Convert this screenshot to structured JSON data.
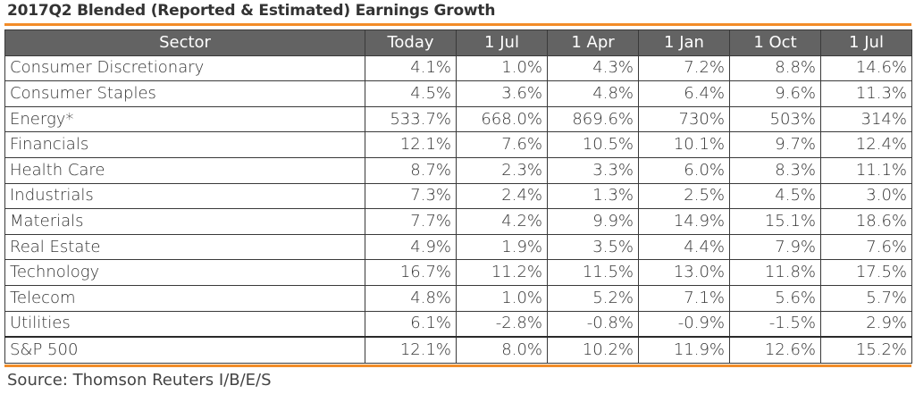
{
  "title": "2017Q2 Blended (Reported & Estimated) Earnings Growth",
  "source": "Source: Thomson Reuters I/B/E/S",
  "colors": {
    "accent": "#f28c28",
    "header_bg": "#636363",
    "text": "#333333"
  },
  "chart_data": {
    "type": "table",
    "title": "2017Q2 Blended (Reported & Estimated) Earnings Growth",
    "columns": [
      "Sector",
      "Today",
      "1 Jul",
      "1 Apr",
      "1 Jan",
      "1 Oct",
      "1 Jul"
    ],
    "rows": [
      [
        "Consumer Discretionary",
        "4.1%",
        "1.0%",
        "4.3%",
        "7.2%",
        "8.8%",
        "14.6%"
      ],
      [
        "Consumer Staples",
        "4.5%",
        "3.6%",
        "4.8%",
        "6.4%",
        "9.6%",
        "11.3%"
      ],
      [
        "Energy*",
        "533.7%",
        "668.0%",
        "869.6%",
        "730%",
        "503%",
        "314%"
      ],
      [
        "Financials",
        "12.1%",
        "7.6%",
        "10.5%",
        "10.1%",
        "9.7%",
        "12.4%"
      ],
      [
        "Health Care",
        "8.7%",
        "2.3%",
        "3.3%",
        "6.0%",
        "8.3%",
        "11.1%"
      ],
      [
        "Industrials",
        "7.3%",
        "2.4%",
        "1.3%",
        "2.5%",
        "4.5%",
        "3.0%"
      ],
      [
        "Materials",
        "7.7%",
        "4.2%",
        "9.9%",
        "14.9%",
        "15.1%",
        "18.6%"
      ],
      [
        "Real Estate",
        "4.9%",
        "1.9%",
        "3.5%",
        "4.4%",
        "7.9%",
        "7.6%"
      ],
      [
        "Technology",
        "16.7%",
        "11.2%",
        "11.5%",
        "13.0%",
        "11.8%",
        "17.5%"
      ],
      [
        "Telecom",
        "4.8%",
        "1.0%",
        "5.2%",
        "7.1%",
        "5.6%",
        "5.7%"
      ],
      [
        "Utilities",
        "6.1%",
        "-2.8%",
        "-0.8%",
        "-0.9%",
        "-1.5%",
        "2.9%"
      ]
    ],
    "total_row": [
      "S&P 500",
      "12.1%",
      "8.0%",
      "10.2%",
      "11.9%",
      "12.6%",
      "15.2%"
    ]
  }
}
